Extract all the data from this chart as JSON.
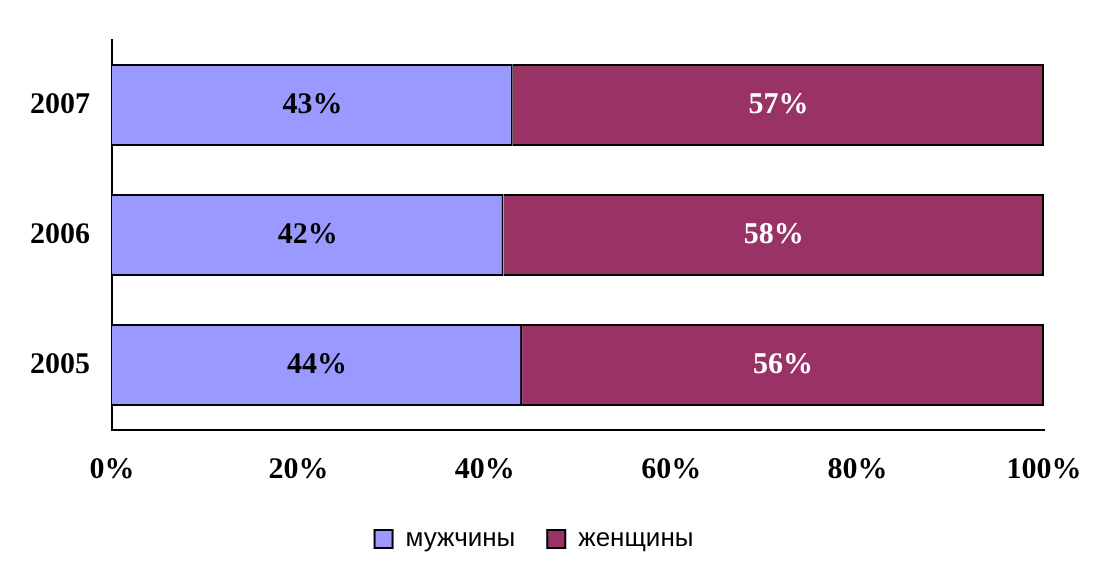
{
  "chart_data": {
    "type": "bar",
    "orientation": "horizontal",
    "stacked": true,
    "categories": [
      "2007",
      "2006",
      "2005"
    ],
    "series": [
      {
        "name": "мужчины",
        "color": "#9999ff",
        "values": [
          43,
          42,
          44
        ],
        "value_labels": [
          "43%",
          "42%",
          "44%"
        ]
      },
      {
        "name": "женщины",
        "color": "#993366",
        "values": [
          57,
          58,
          56
        ],
        "value_labels": [
          "57%",
          "58%",
          "56%"
        ]
      }
    ],
    "xlim": [
      0,
      100
    ],
    "xticks": [
      {
        "value": 0,
        "label": "0%"
      },
      {
        "value": 20,
        "label": "20%"
      },
      {
        "value": 40,
        "label": "40%"
      },
      {
        "value": 60,
        "label": "60%"
      },
      {
        "value": 80,
        "label": "80%"
      },
      {
        "value": 100,
        "label": "100%"
      }
    ],
    "legend": "bottom"
  }
}
